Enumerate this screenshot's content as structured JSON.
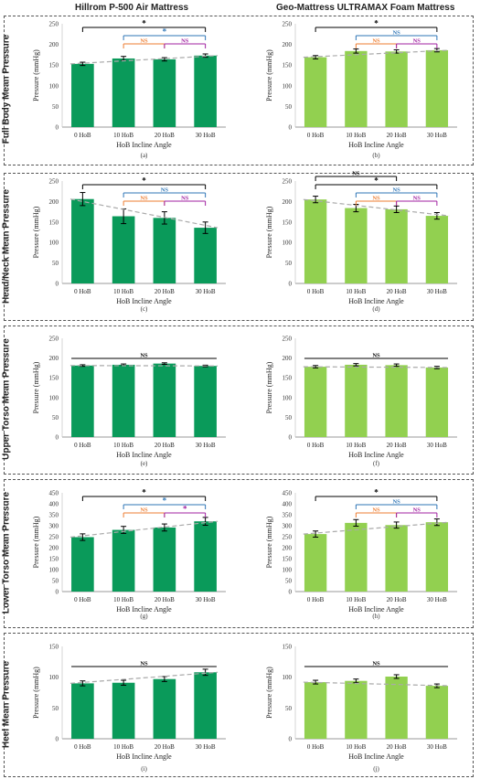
{
  "columns": {
    "left_title": "Hillrom P-500 Air Mattress",
    "right_title": "Geo-Mattress ULTRAMAX Foam Mattress"
  },
  "rows": [
    {
      "label": "Full Body Mean Pressure"
    },
    {
      "label": "Head/Neck Mean Pressure"
    },
    {
      "label": "Upper Torso Mean Pressure"
    },
    {
      "label": "Lower Torso Mean Pressure"
    },
    {
      "label": "Heel Mean Pressure"
    }
  ],
  "colors": {
    "dark_green": "#0a9a5a",
    "light_green": "#92d050",
    "trend": "#aaaaaa",
    "black": "#000000",
    "blue": "#2e75b6",
    "orange": "#ed7d31",
    "purple": "#a020a0"
  },
  "chart_data": [
    {
      "id": "a",
      "type": "bar",
      "panel_label": "(a)",
      "color": "dark_green",
      "categories": [
        "0 HoB",
        "10 HoB",
        "20 HoB",
        "30 HoB"
      ],
      "values": [
        153,
        166,
        164,
        173
      ],
      "errors": [
        4,
        5,
        4,
        4
      ],
      "xlabel": "HoB Incline Angle",
      "ylabel": "Pressure (mmHg)",
      "ylim": [
        0,
        250
      ],
      "yticks": [
        0,
        50,
        100,
        150,
        200,
        250
      ],
      "annotations": [
        {
          "from": 0,
          "to": 3,
          "text": "*",
          "color": "black",
          "level": 2
        },
        {
          "from": 1,
          "to": 3,
          "text": "*",
          "color": "blue",
          "level": 1
        },
        {
          "from": 1,
          "to": 2,
          "text": "NS",
          "color": "orange",
          "level": 0
        },
        {
          "from": 2,
          "to": 3,
          "text": "NS",
          "color": "purple",
          "level": 0
        }
      ]
    },
    {
      "id": "b",
      "type": "bar",
      "panel_label": "(b)",
      "color": "light_green",
      "categories": [
        "0 HoB",
        "10 HoB",
        "20 HoB",
        "30 HoB"
      ],
      "values": [
        169,
        184,
        183,
        186
      ],
      "errors": [
        4,
        5,
        4,
        4
      ],
      "xlabel": "HoB Incline Angle",
      "ylabel": "Pressure (mmHg)",
      "ylim": [
        0,
        250
      ],
      "yticks": [
        0,
        50,
        100,
        150,
        200,
        250
      ],
      "annotations": [
        {
          "from": 0,
          "to": 3,
          "text": "*",
          "color": "black",
          "level": 2
        },
        {
          "from": 1,
          "to": 3,
          "text": "NS",
          "color": "blue",
          "level": 1
        },
        {
          "from": 1,
          "to": 2,
          "text": "NS",
          "color": "orange",
          "level": 0
        },
        {
          "from": 2,
          "to": 3,
          "text": "NS",
          "color": "purple",
          "level": 0
        }
      ]
    },
    {
      "id": "c",
      "type": "bar",
      "panel_label": "(c)",
      "color": "dark_green",
      "categories": [
        "0 HoB",
        "10 HoB",
        "20 HoB",
        "30 HoB"
      ],
      "values": [
        206,
        164,
        160,
        136
      ],
      "errors": [
        16,
        18,
        15,
        14
      ],
      "xlabel": "HoB Incline Angle",
      "ylabel": "Pressure (mmHg)",
      "ylim": [
        0,
        250
      ],
      "yticks": [
        0,
        50,
        100,
        150,
        200,
        250
      ],
      "annotations": [
        {
          "from": 0,
          "to": 3,
          "text": "*",
          "color": "black",
          "level": 2
        },
        {
          "from": 1,
          "to": 3,
          "text": "NS",
          "color": "blue",
          "level": 1
        },
        {
          "from": 1,
          "to": 2,
          "text": "NS",
          "color": "orange",
          "level": 0
        },
        {
          "from": 2,
          "to": 3,
          "text": "NS",
          "color": "purple",
          "level": 0
        }
      ]
    },
    {
      "id": "d",
      "type": "bar",
      "panel_label": "(d)",
      "color": "light_green",
      "categories": [
        "0 HoB",
        "10 HoB",
        "20 HoB",
        "30 HoB"
      ],
      "values": [
        205,
        184,
        181,
        165
      ],
      "errors": [
        8,
        9,
        8,
        8
      ],
      "xlabel": "HoB Incline Angle",
      "ylabel": "Pressure (mmHg)",
      "ylim": [
        0,
        250
      ],
      "yticks": [
        0,
        50,
        100,
        150,
        200,
        250
      ],
      "annotations": [
        {
          "from": 0,
          "to": 2,
          "text": "NS",
          "color": "black",
          "level": 3
        },
        {
          "from": 0,
          "to": 3,
          "text": "*",
          "color": "black",
          "level": 2
        },
        {
          "from": 1,
          "to": 3,
          "text": "NS",
          "color": "blue",
          "level": 1
        },
        {
          "from": 1,
          "to": 2,
          "text": "NS",
          "color": "orange",
          "level": 0
        },
        {
          "from": 2,
          "to": 3,
          "text": "NS",
          "color": "purple",
          "level": 0
        }
      ]
    },
    {
      "id": "e",
      "type": "bar",
      "panel_label": "(e)",
      "color": "dark_green",
      "categories": [
        "0 HoB",
        "10 HoB",
        "20 HoB",
        "30 HoB"
      ],
      "values": [
        181,
        183,
        186,
        180
      ],
      "errors": [
        2,
        2,
        2,
        2
      ],
      "xlabel": "HoB Incline Angle",
      "ylabel": "Pressure (mmHg)",
      "ylim": [
        0,
        250
      ],
      "yticks": [
        0,
        50,
        100,
        150,
        200,
        250
      ],
      "annotations": [
        {
          "from": 0,
          "to": 3,
          "text": "NS",
          "color": "black",
          "level": 0,
          "flat": true
        }
      ]
    },
    {
      "id": "f",
      "type": "bar",
      "panel_label": "(f)",
      "color": "light_green",
      "categories": [
        "0 HoB",
        "10 HoB",
        "20 HoB",
        "30 HoB"
      ],
      "values": [
        178,
        183,
        182,
        176
      ],
      "errors": [
        3,
        3,
        3,
        3
      ],
      "xlabel": "HoB Incline Angle",
      "ylabel": "Pressure (mmHg)",
      "ylim": [
        0,
        250
      ],
      "yticks": [
        0,
        50,
        100,
        150,
        200,
        250
      ],
      "annotations": [
        {
          "from": 0,
          "to": 3,
          "text": "NS",
          "color": "black",
          "level": 0,
          "flat": true
        }
      ]
    },
    {
      "id": "g",
      "type": "bar",
      "panel_label": "(g)",
      "color": "dark_green",
      "categories": [
        "0 HoB",
        "10 HoB",
        "20 HoB",
        "30 HoB"
      ],
      "values": [
        248,
        281,
        292,
        320
      ],
      "errors": [
        15,
        16,
        16,
        18
      ],
      "xlabel": "HoB Incline Angle",
      "ylabel": "Pressure (mmHg)",
      "ylim": [
        0,
        450
      ],
      "yticks": [
        0,
        50,
        100,
        150,
        200,
        250,
        300,
        350,
        400,
        450
      ],
      "annotations": [
        {
          "from": 0,
          "to": 3,
          "text": "*",
          "color": "black",
          "level": 2
        },
        {
          "from": 1,
          "to": 3,
          "text": "*",
          "color": "blue",
          "level": 1
        },
        {
          "from": 1,
          "to": 2,
          "text": "NS",
          "color": "orange",
          "level": 0
        },
        {
          "from": 2,
          "to": 3,
          "text": "*",
          "color": "purple",
          "level": 0
        }
      ]
    },
    {
      "id": "h",
      "type": "bar",
      "panel_label": "(h)",
      "color": "light_green",
      "categories": [
        "0 HoB",
        "10 HoB",
        "20 HoB",
        "30 HoB"
      ],
      "values": [
        262,
        313,
        303,
        316
      ],
      "errors": [
        14,
        15,
        14,
        15
      ],
      "xlabel": "HoB Incline Angle",
      "ylabel": "Pressure (mmHg)",
      "ylim": [
        0,
        450
      ],
      "yticks": [
        0,
        50,
        100,
        150,
        200,
        250,
        300,
        350,
        400,
        450
      ],
      "annotations": [
        {
          "from": 0,
          "to": 3,
          "text": "*",
          "color": "black",
          "level": 2
        },
        {
          "from": 1,
          "to": 3,
          "text": "NS",
          "color": "blue",
          "level": 1
        },
        {
          "from": 1,
          "to": 2,
          "text": "NS",
          "color": "orange",
          "level": 0
        },
        {
          "from": 2,
          "to": 3,
          "text": "NS",
          "color": "purple",
          "level": 0
        }
      ]
    },
    {
      "id": "i",
      "type": "bar",
      "panel_label": "(i)",
      "color": "dark_green",
      "categories": [
        "0 HoB",
        "10 HoB",
        "20 HoB",
        "30 HoB"
      ],
      "values": [
        90,
        91,
        97,
        108
      ],
      "errors": [
        4,
        4,
        4,
        5
      ],
      "xlabel": "HoB Incline Angle",
      "ylabel": "Pressure (mmHg)",
      "ylim": [
        0,
        150
      ],
      "yticks": [
        0,
        50,
        100,
        150
      ],
      "annotations": [
        {
          "from": 0,
          "to": 3,
          "text": "NS",
          "color": "black",
          "level": 0,
          "flat": true
        }
      ]
    },
    {
      "id": "j",
      "type": "bar",
      "panel_label": "(j)",
      "color": "light_green",
      "categories": [
        "0 HoB",
        "10 HoB",
        "20 HoB",
        "30 HoB"
      ],
      "values": [
        92,
        94,
        101,
        86
      ],
      "errors": [
        3,
        3,
        3,
        3
      ],
      "xlabel": "HoB Incline Angle",
      "ylabel": "Pressure (mmHg)",
      "ylim": [
        0,
        150
      ],
      "yticks": [
        0,
        50,
        100,
        150
      ],
      "annotations": [
        {
          "from": 0,
          "to": 3,
          "text": "NS",
          "color": "black",
          "level": 0,
          "flat": true
        }
      ]
    }
  ]
}
